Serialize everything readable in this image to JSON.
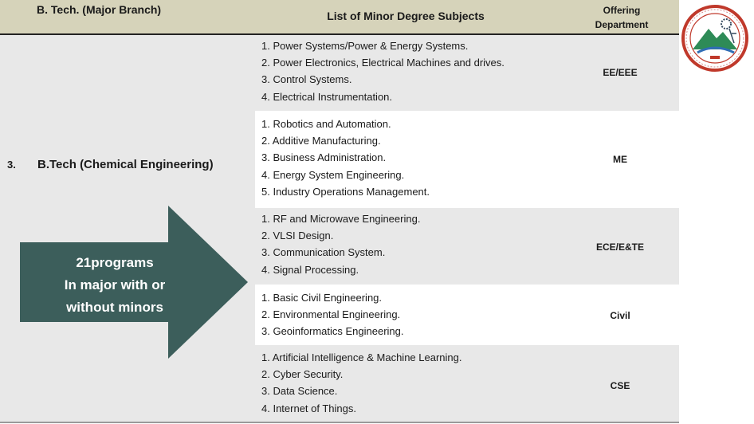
{
  "header": {
    "branch_col": "B. Tech. (Major Branch)",
    "list_col": "List of Minor Degree Subjects",
    "dept_col_line1": "Offering",
    "dept_col_line2": "Department"
  },
  "entry": {
    "number": "3.",
    "branch": "B.Tech (Chemical  Engineering)"
  },
  "arrow": {
    "line1": "21programs",
    "line2": "In major with or",
    "line3": "without minors",
    "color": "#3c5e5b"
  },
  "rows": [
    {
      "dept": "EE/EEE",
      "subjects": [
        "1. Power Systems/Power & Energy Systems.",
        "2. Power Electronics, Electrical  Machines and drives.",
        "3. Control Systems.",
        "4. Electrical Instrumentation."
      ]
    },
    {
      "dept": "ME",
      "subjects": [
        "1. Robotics and Automation.",
        "2. Additive Manufacturing.",
        "3. Business Administration.",
        "4. Energy System Engineering.",
        "5.  Industry Operations Management."
      ]
    },
    {
      "dept": "ECE/E&TE",
      "subjects": [
        "1. RF and Microwave Engineering.",
        "2. VLSI Design.",
        "3. Communication System.",
        "4. Signal Processing."
      ]
    },
    {
      "dept": "Civil",
      "subjects": [
        "1. Basic Civil Engineering.",
        "2. Environmental Engineering.",
        "3. Geoinformatics Engineering."
      ]
    },
    {
      "dept": "CSE",
      "subjects": [
        "1. Artificial Intelligence & Machine Learning.",
        "2. Cyber Security.",
        "3. Data Science.",
        "4. Internet of Things."
      ]
    }
  ],
  "logo": {
    "icon": "university-seal-icon",
    "ring_color": "#c0392b",
    "mountain_color": "#2e8b57"
  }
}
